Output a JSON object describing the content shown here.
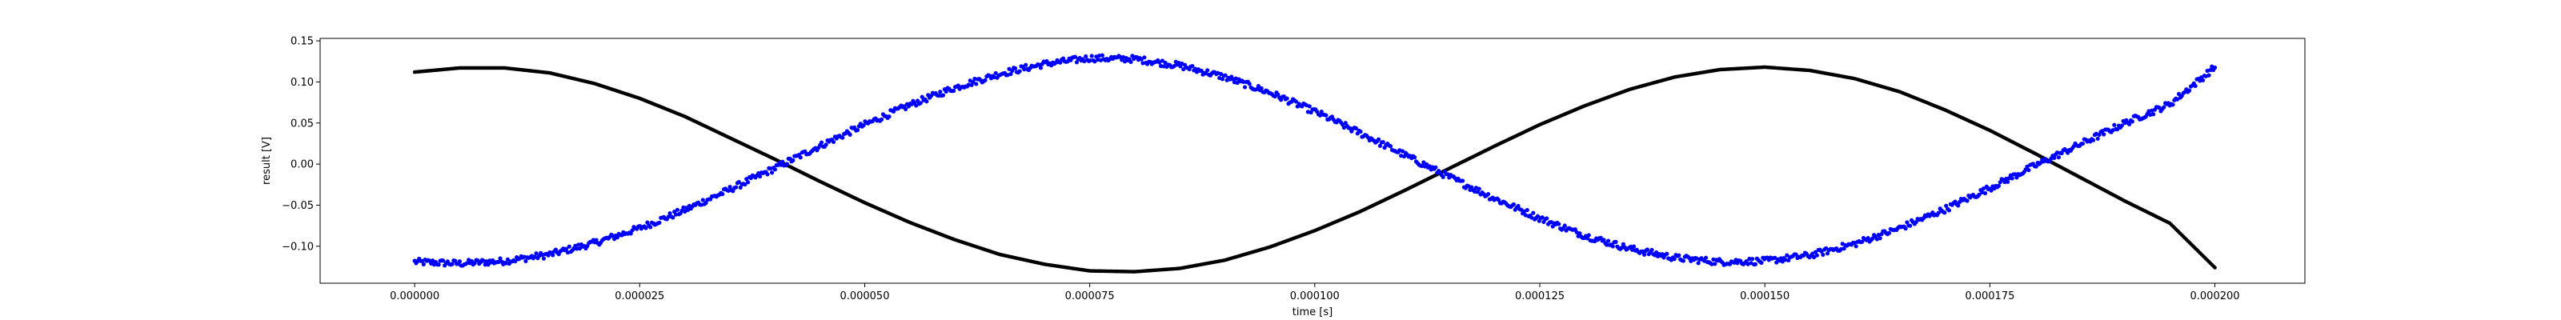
{
  "chart_data": {
    "type": "scatter",
    "title": "",
    "xlabel": "time [s]",
    "ylabel": "result [V]",
    "xlim": [
      -1.05e-05,
      0.00021
    ],
    "ylim": [
      -0.145,
      0.153
    ],
    "grid": false,
    "x_ticks": [
      0.0,
      2.5e-05,
      5e-05,
      7.5e-05,
      0.0001,
      0.000125,
      0.00015,
      0.000175,
      0.0002
    ],
    "x_tick_labels": [
      "0.000000",
      "0.000025",
      "0.000050",
      "0.000075",
      "0.000100",
      "0.000125",
      "0.000150",
      "0.000175",
      "0.000200"
    ],
    "y_ticks": [
      -0.1,
      -0.05,
      0.0,
      0.05,
      0.1,
      0.15
    ],
    "y_tick_labels": [
      "−0.10",
      "−0.05",
      "0.00",
      "0.05",
      "0.10",
      "0.15"
    ],
    "series": [
      {
        "color": "#000000",
        "marker": "dot",
        "x": [
          0.0,
          5e-06,
          1e-05,
          1.5e-05,
          2e-05,
          2.5e-05,
          3e-05,
          3.5e-05,
          4e-05,
          4.5e-05,
          5e-05,
          5.5e-05,
          6e-05,
          6.5e-05,
          7e-05,
          7.5e-05,
          8e-05,
          8.5e-05,
          9e-05,
          9.5e-05,
          0.0001,
          0.000105,
          0.00011,
          0.000115,
          0.00012,
          0.000125,
          0.00013,
          0.000135,
          0.00014,
          0.000145,
          0.00015,
          0.000155,
          0.00016,
          0.000165,
          0.00017,
          0.000175,
          0.00018,
          0.000185,
          0.00019,
          0.000195,
          0.0002
        ],
        "y": [
          0.112,
          0.117,
          0.117,
          0.111,
          0.098,
          0.08,
          0.058,
          0.032,
          0.006,
          -0.021,
          -0.047,
          -0.071,
          -0.092,
          -0.11,
          -0.122,
          -0.13,
          -0.131,
          -0.127,
          -0.117,
          -0.101,
          -0.081,
          -0.058,
          -0.032,
          -0.005,
          0.022,
          0.048,
          0.071,
          0.091,
          0.106,
          0.115,
          0.118,
          0.114,
          0.104,
          0.088,
          0.066,
          0.041,
          0.013,
          -0.016,
          -0.045,
          -0.072,
          -0.126
        ]
      },
      {
        "color": "#0000ff",
        "marker": "dot",
        "x": [
          0.0,
          5e-06,
          1e-05,
          1.5e-05,
          2e-05,
          2.5e-05,
          3e-05,
          3.5e-05,
          4e-05,
          4.5e-05,
          5e-05,
          5.5e-05,
          6e-05,
          6.5e-05,
          7e-05,
          7.5e-05,
          8e-05,
          8.5e-05,
          9e-05,
          9.5e-05,
          0.0001,
          0.000105,
          0.00011,
          0.000115,
          0.00012,
          0.000125,
          0.00013,
          0.000135,
          0.00014,
          0.000145,
          0.00015,
          0.000155,
          0.00016,
          0.000165,
          0.00017,
          0.000175,
          0.00018,
          0.000185,
          0.00019,
          0.000195,
          0.0002
        ],
        "y": [
          -0.119,
          -0.121,
          -0.118,
          -0.11,
          -0.096,
          -0.078,
          -0.056,
          -0.031,
          -0.005,
          0.022,
          0.048,
          0.072,
          0.093,
          0.11,
          0.122,
          0.129,
          0.128,
          0.12,
          0.106,
          0.087,
          0.064,
          0.038,
          0.011,
          -0.016,
          -0.042,
          -0.066,
          -0.087,
          -0.103,
          -0.114,
          -0.119,
          -0.118,
          -0.111,
          -0.097,
          -0.078,
          -0.055,
          -0.029,
          -0.002,
          0.024,
          0.05,
          0.073,
          0.118
        ]
      }
    ]
  }
}
